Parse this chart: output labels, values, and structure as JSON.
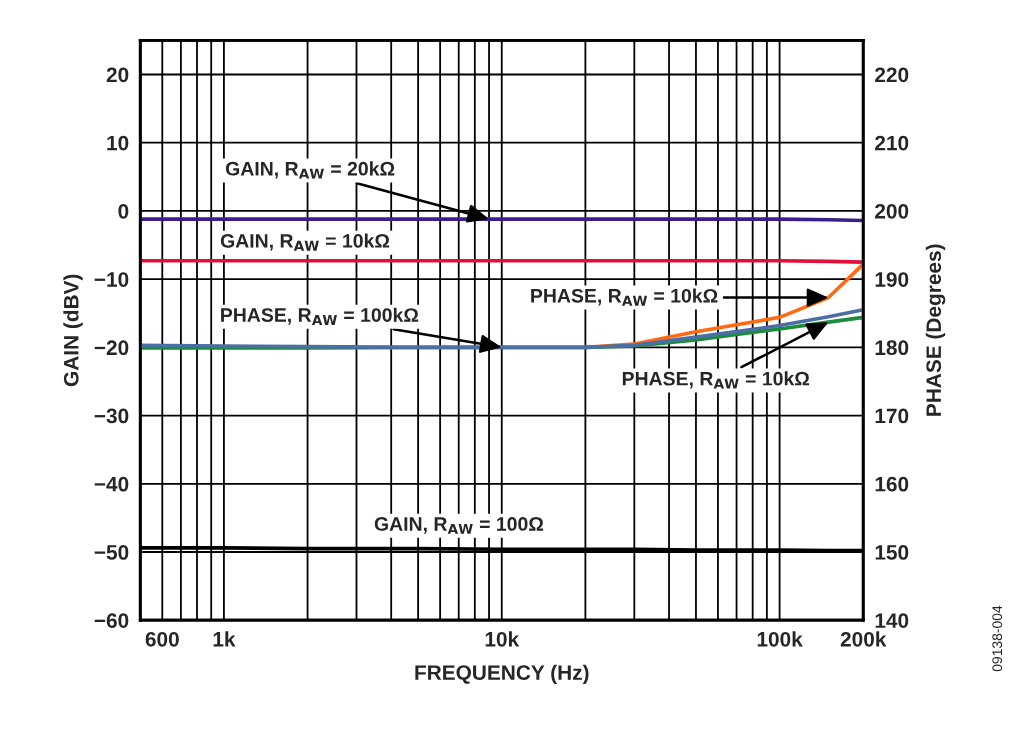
{
  "chart_data": {
    "type": "line",
    "xlabel": "FREQUENCY (Hz)",
    "ylabel": "GAIN (dBV)",
    "y2label": "PHASE (Degrees)",
    "x": [
      500,
      1000,
      2000,
      5000,
      10000,
      20000,
      30000,
      50000,
      70000,
      100000,
      150000,
      200000
    ],
    "series": [
      {
        "color": "#3b1e8e",
        "values": [
          -1.2,
          -1.2,
          -1.2,
          -1.2,
          -1.2,
          -1.2,
          -1.2,
          -1.2,
          -1.2,
          -1.2,
          -1.3,
          -1.4
        ]
      },
      {
        "color": "#e0103c",
        "values": [
          -7.3,
          -7.3,
          -7.3,
          -7.3,
          -7.3,
          -7.3,
          -7.3,
          -7.3,
          -7.3,
          -7.3,
          -7.4,
          -7.5
        ]
      },
      {
        "color": "#000000",
        "values": [
          -49.4,
          -49.4,
          -49.5,
          -49.5,
          -49.6,
          -49.6,
          -49.6,
          -49.7,
          -49.7,
          -49.7,
          -49.8,
          -49.8
        ]
      },
      {
        "color": "#ff6a13",
        "axis": "y2",
        "values": [
          null,
          null,
          null,
          null,
          null,
          180,
          180.5,
          182.3,
          183.3,
          184.4,
          187.3,
          192.2
        ]
      },
      {
        "color": "#1a8c3c",
        "axis": "y2",
        "values": [
          179.9,
          179.9,
          179.9,
          180,
          180,
          180,
          180.2,
          181.1,
          181.9,
          182.7,
          183.7,
          184.4
        ]
      },
      {
        "color": "#4a6fa5",
        "axis": "y2",
        "values": [
          180.3,
          180.2,
          180.1,
          180,
          180,
          180,
          180.3,
          181.5,
          182.3,
          183.2,
          184.5,
          185.5
        ]
      }
    ],
    "xlim": [
      500,
      200000
    ],
    "xticks": [
      {
        "value": 600,
        "label": "600"
      },
      {
        "value": 700,
        "label": null
      },
      {
        "value": 800,
        "label": null
      },
      {
        "value": 900,
        "label": null
      },
      {
        "value": 1000,
        "label": "1k"
      },
      {
        "value": 2000,
        "label": null
      },
      {
        "value": 3000,
        "label": null
      },
      {
        "value": 4000,
        "label": null
      },
      {
        "value": 5000,
        "label": null
      },
      {
        "value": 6000,
        "label": null
      },
      {
        "value": 7000,
        "label": null
      },
      {
        "value": 8000,
        "label": null
      },
      {
        "value": 9000,
        "label": null
      },
      {
        "value": 10000,
        "label": "10k"
      },
      {
        "value": 20000,
        "label": null
      },
      {
        "value": 30000,
        "label": null
      },
      {
        "value": 40000,
        "label": null
      },
      {
        "value": 50000,
        "label": null
      },
      {
        "value": 60000,
        "label": null
      },
      {
        "value": 70000,
        "label": null
      },
      {
        "value": 80000,
        "label": null
      },
      {
        "value": 90000,
        "label": null
      },
      {
        "value": 100000,
        "label": "100k"
      },
      {
        "value": 200000,
        "label": "200k"
      }
    ],
    "ylim": [
      -60,
      25
    ],
    "yticks": [
      -60,
      -50,
      -40,
      -30,
      -20,
      -10,
      0,
      10,
      20
    ],
    "y2lim": [
      140,
      225
    ],
    "y2ticks": [
      140,
      150,
      160,
      170,
      180,
      190,
      200,
      210,
      220
    ],
    "log": "x",
    "grid": true,
    "legend": false,
    "annotations": [
      {
        "text": "GAIN, R$_{AW}$ = 20kΩ",
        "x": 9000,
        "y": -1.2
      },
      {
        "text": "GAIN, R$_{AW}$ = 10kΩ",
        "x": 2000,
        "y": -7.3
      },
      {
        "text": "PHASE, R$_{AW}$ = 100kΩ",
        "x": 10000,
        "y": -20
      },
      {
        "text": "PHASE, R$_{AW}$ = 10kΩ",
        "x": 150000,
        "y": -12.7
      },
      {
        "text": "PHASE, R$_{AW}$ = 10kΩ",
        "x": 150000,
        "y": -16.3
      },
      {
        "text": "GAIN, R$_{AW}$ = 100Ω",
        "x": 10000,
        "y": -49.6
      },
      "09138-004"
    ]
  }
}
